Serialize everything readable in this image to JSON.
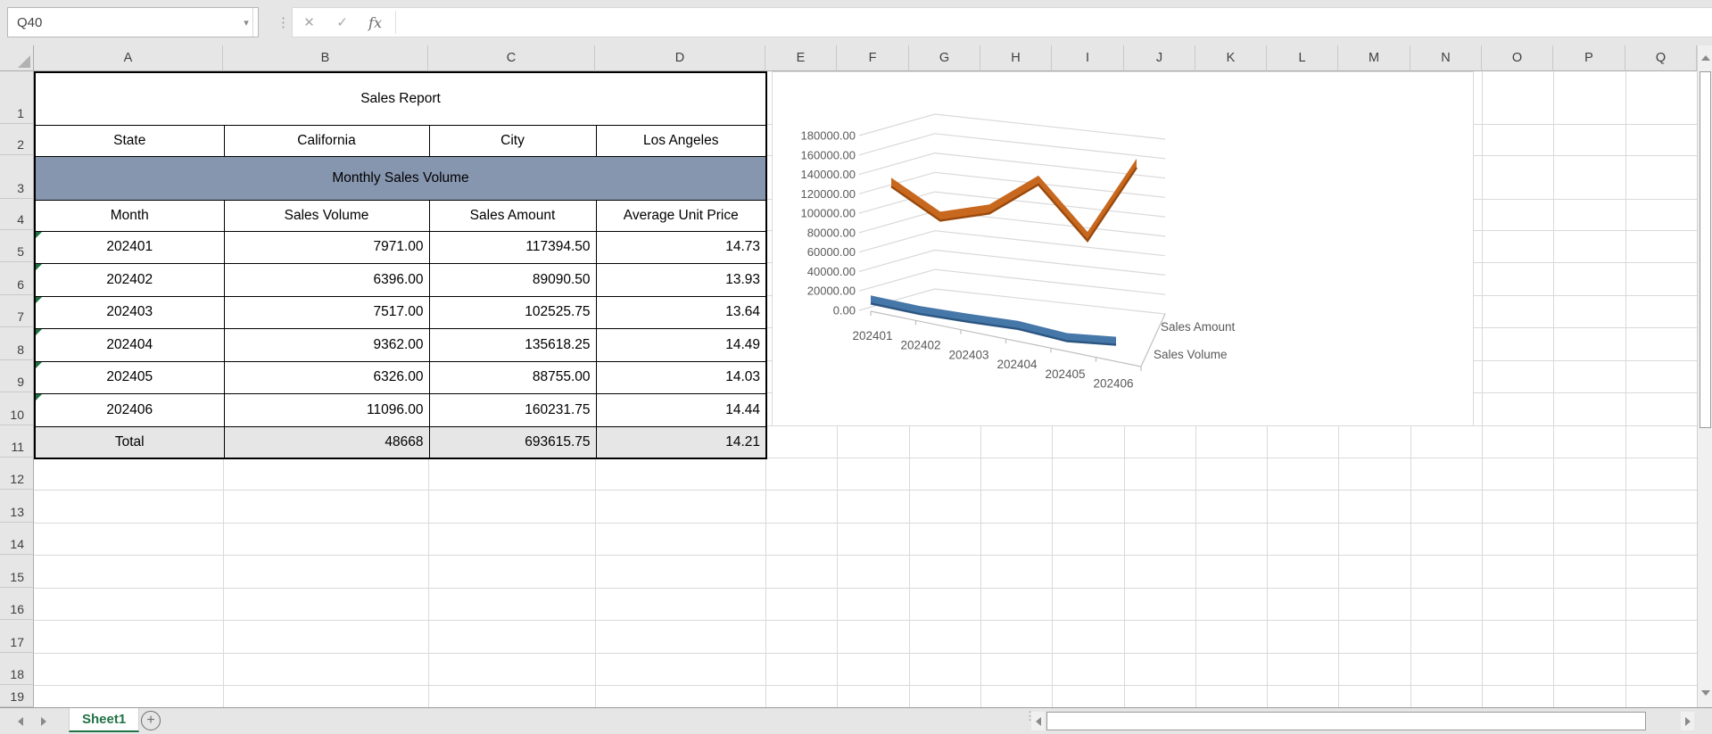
{
  "app": {
    "name_box": "Q40",
    "formula_bar_value": "",
    "icons": {
      "namebox_dropdown": "▾",
      "handle_dots": "⋮",
      "cancel": "✕",
      "enter": "✓",
      "insert_function": "fx",
      "add_sheet": "+"
    }
  },
  "grid": {
    "columns": [
      "A",
      "B",
      "C",
      "D",
      "E",
      "F",
      "G",
      "H",
      "I",
      "J",
      "K",
      "L",
      "M",
      "N",
      "O",
      "P",
      "Q"
    ],
    "rows": [
      "1",
      "2",
      "3",
      "4",
      "5",
      "6",
      "7",
      "8",
      "9",
      "10",
      "11",
      "12",
      "13",
      "14",
      "15",
      "16",
      "17",
      "18",
      "19"
    ]
  },
  "table": {
    "title": "Sales Report",
    "meta_row": [
      "State",
      "California",
      "City",
      "Los Angeles"
    ],
    "section_header": "Monthly Sales Volume",
    "headers": [
      "Month",
      "Sales Volume",
      "Sales Amount",
      "Average Unit Price"
    ],
    "rows": [
      [
        "202401",
        "7971.00",
        "117394.50",
        "14.73"
      ],
      [
        "202402",
        "6396.00",
        "89090.50",
        "13.93"
      ],
      [
        "202403",
        "7517.00",
        "102525.75",
        "13.64"
      ],
      [
        "202404",
        "9362.00",
        "135618.25",
        "14.49"
      ],
      [
        "202405",
        "6326.00",
        "88755.00",
        "14.03"
      ],
      [
        "202406",
        "11096.00",
        "160231.75",
        "14.44"
      ]
    ],
    "total_row": [
      "Total",
      "48668",
      "693615.75",
      "14.21"
    ],
    "flagged_rows_note": "green corner flags on month cells rows 5-10",
    "section_fill": "#8796af",
    "total_fill": "#e7e6e6"
  },
  "chart_data": {
    "type": "line",
    "projection": "3d",
    "categories": [
      "202401",
      "202402",
      "202403",
      "202404",
      "202405",
      "202406"
    ],
    "series": [
      {
        "name": "Sales Volume",
        "color": "#4677a9",
        "dark": "#2c5681",
        "values": [
          7971,
          6396,
          7517,
          9362,
          6326,
          11096
        ]
      },
      {
        "name": "Sales Amount",
        "color": "#c8681e",
        "dark": "#99490d",
        "values": [
          117394.5,
          89090.5,
          102525.75,
          135618.25,
          88755,
          160231.75
        ]
      }
    ],
    "ylim": [
      0,
      180000
    ],
    "ytick_step": 20000,
    "ytick_format": "0.00",
    "grid": true,
    "legend_position": "series-labels-right",
    "text_color": "#595959",
    "gridline_color": "#d9d9d9"
  },
  "sheet": {
    "tabs": [
      {
        "label": "Sheet1",
        "active": true
      }
    ]
  },
  "colors": {
    "accent_green": "#217346",
    "flag_green": "#1e7145",
    "chrome_gray": "#e6e6e6"
  }
}
